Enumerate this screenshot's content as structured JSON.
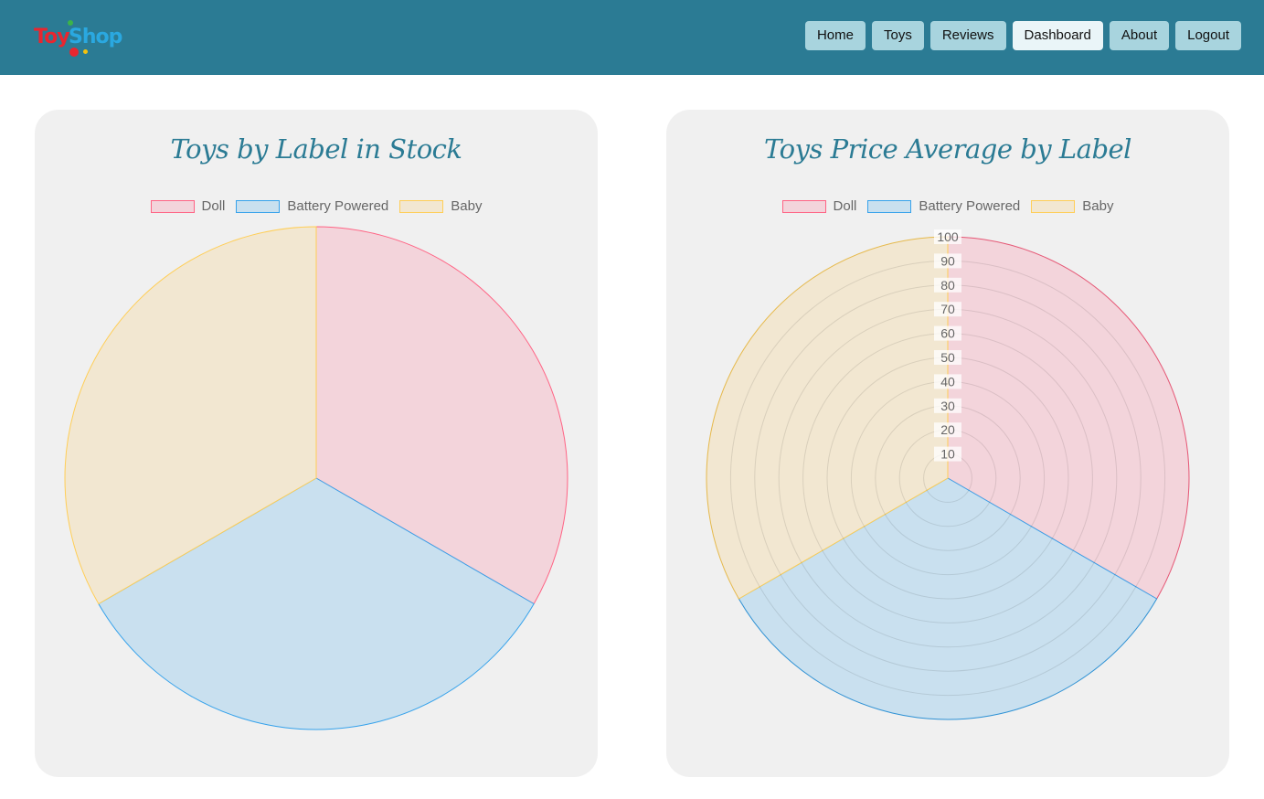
{
  "header": {
    "logo": {
      "part1": "Toy",
      "part2": "Shop"
    },
    "nav": [
      {
        "label": "Home",
        "active": false
      },
      {
        "label": "Toys",
        "active": false
      },
      {
        "label": "Reviews",
        "active": false
      },
      {
        "label": "Dashboard",
        "active": true
      },
      {
        "label": "About",
        "active": false
      },
      {
        "label": "Logout",
        "active": false
      }
    ]
  },
  "colors": {
    "header_bg": "#2b7b94",
    "doll_border": "#ff6384",
    "doll_fill": "#f3d4db",
    "battery_border": "#36a2eb",
    "battery_fill": "#c9e0ef",
    "baby_border": "#ffce56",
    "baby_fill": "#f2e7d1"
  },
  "chart_data": [
    {
      "type": "pie",
      "title": "Toys by Label in Stock",
      "categories": [
        "Doll",
        "Battery Powered",
        "Baby"
      ],
      "values": [
        1,
        1,
        1
      ],
      "legend": "top"
    },
    {
      "type": "polarArea",
      "title": "Toys Price Average by Label",
      "categories": [
        "Doll",
        "Battery Powered",
        "Baby"
      ],
      "values": [
        100,
        100,
        100
      ],
      "rlim": [
        0,
        100
      ],
      "ticks": [
        "10",
        "20",
        "30",
        "40",
        "50",
        "60",
        "70",
        "80",
        "90",
        "100"
      ],
      "grid": true,
      "legend": "top"
    }
  ]
}
